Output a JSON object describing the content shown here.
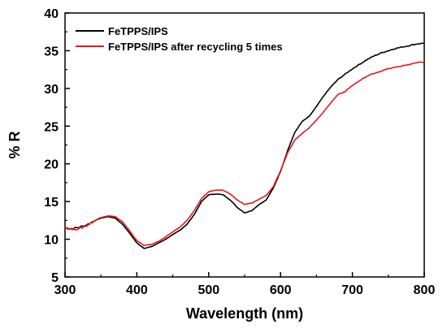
{
  "chart_data": {
    "type": "line",
    "title": "",
    "xlabel": "Wavelength (nm)",
    "ylabel": "% R",
    "xlim": [
      300,
      800
    ],
    "ylim": [
      5,
      40
    ],
    "xticks": [
      300,
      400,
      500,
      600,
      700,
      800
    ],
    "yticks": [
      5,
      10,
      15,
      20,
      25,
      30,
      35,
      40
    ],
    "grid": false,
    "legend_position": "top-left",
    "series": [
      {
        "name": "FeTPPS/IPS",
        "color": "#000000",
        "x": [
          300,
          310,
          320,
          330,
          340,
          350,
          360,
          370,
          380,
          390,
          400,
          410,
          420,
          430,
          440,
          450,
          460,
          470,
          480,
          490,
          500,
          510,
          520,
          530,
          540,
          550,
          560,
          570,
          580,
          590,
          600,
          610,
          620,
          630,
          640,
          650,
          660,
          670,
          680,
          690,
          700,
          710,
          720,
          730,
          740,
          750,
          760,
          770,
          780,
          790,
          800
        ],
        "y": [
          11.5,
          11.4,
          11.6,
          11.9,
          12.4,
          12.8,
          13.0,
          12.8,
          12.0,
          10.8,
          9.5,
          8.8,
          9.0,
          9.5,
          10.0,
          10.6,
          11.2,
          12.0,
          13.3,
          15.0,
          15.9,
          16.0,
          15.9,
          15.2,
          14.2,
          13.5,
          13.8,
          14.6,
          15.2,
          16.8,
          19.0,
          21.8,
          24.2,
          25.6,
          26.3,
          27.6,
          29.0,
          30.2,
          31.2,
          31.9,
          32.6,
          33.2,
          33.8,
          34.3,
          34.7,
          35.0,
          35.3,
          35.5,
          35.7,
          35.9,
          36.0
        ]
      },
      {
        "name": "FeTPPS/IPS after recycling 5 times",
        "color": "#e8161b",
        "x": [
          300,
          310,
          320,
          330,
          340,
          350,
          360,
          370,
          380,
          390,
          400,
          410,
          420,
          430,
          440,
          450,
          460,
          470,
          480,
          490,
          500,
          510,
          520,
          530,
          540,
          550,
          560,
          570,
          580,
          590,
          600,
          610,
          620,
          630,
          640,
          650,
          660,
          670,
          680,
          690,
          700,
          710,
          720,
          730,
          740,
          750,
          760,
          770,
          780,
          790,
          800
        ],
        "y": [
          11.6,
          11.3,
          11.4,
          11.8,
          12.4,
          12.9,
          13.1,
          13.0,
          12.3,
          11.1,
          9.8,
          9.2,
          9.3,
          9.7,
          10.3,
          11.0,
          11.6,
          12.5,
          13.8,
          15.4,
          16.3,
          16.5,
          16.5,
          16.0,
          15.2,
          14.6,
          14.8,
          15.3,
          15.8,
          17.0,
          19.1,
          21.5,
          23.2,
          24.0,
          24.8,
          25.8,
          26.9,
          28.1,
          29.2,
          29.6,
          30.4,
          31.0,
          31.6,
          32.0,
          32.3,
          32.6,
          32.8,
          33.0,
          33.2,
          33.4,
          33.5
        ]
      }
    ]
  }
}
